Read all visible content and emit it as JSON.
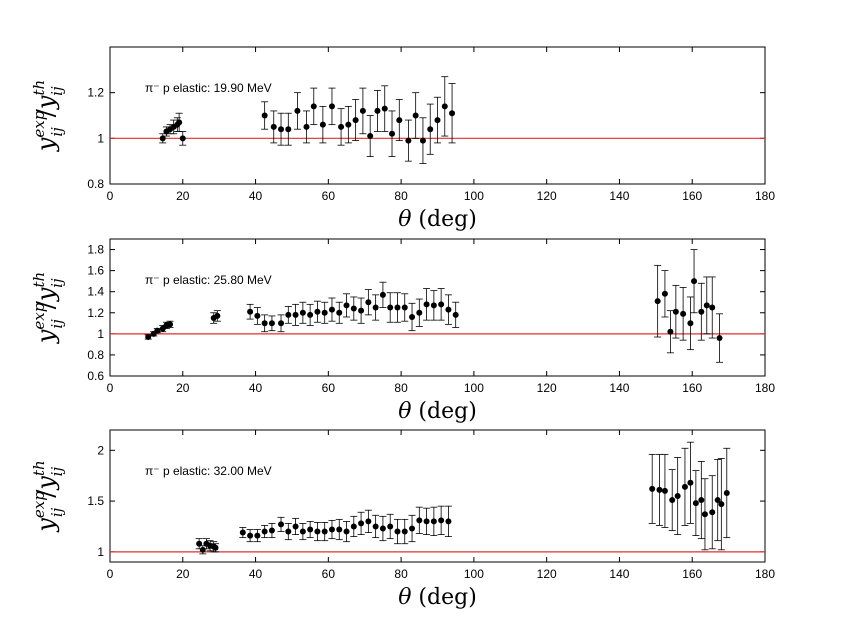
{
  "figure": {
    "xlabel_symbol": "θ",
    "xlabel_unit": "(deg)",
    "ylabel_main": "y",
    "ylabel_sup": "exp",
    "ylabel_sub": "ij",
    "ylabel_slash": "/",
    "ylabel_sup2": "th",
    "ref_line_color": "#e03030"
  },
  "chart_data": [
    {
      "type": "scatter",
      "label": "π⁻ p elastic: 19.90 MeV",
      "xlim": [
        0,
        180
      ],
      "ylim": [
        0.8,
        1.4
      ],
      "xticks": [
        "0",
        "20",
        "40",
        "60",
        "80",
        "100",
        "120",
        "140",
        "160",
        "180"
      ],
      "yticks": [
        {
          "value": 0.8,
          "label": "0.8"
        },
        {
          "value": 1.0,
          "label": "1"
        },
        {
          "value": 1.2,
          "label": "1.2"
        }
      ],
      "reference_y": 1,
      "series": [
        {
          "x": [
            14.5,
            15.5,
            16.5,
            17.5,
            18.5,
            19.0,
            20.0,
            42.5,
            45.0,
            47.0,
            49.0,
            51.5,
            54.0,
            56.0,
            58.5,
            61.0,
            63.5,
            65.5,
            67.5,
            69.5,
            71.5,
            73.5,
            75.5,
            77.5,
            79.5,
            82.0,
            84.0,
            86.0,
            88.0,
            90.0,
            92.0,
            94.0
          ],
          "y": [
            1.0,
            1.03,
            1.04,
            1.05,
            1.06,
            1.07,
            1.0,
            1.1,
            1.05,
            1.04,
            1.04,
            1.12,
            1.05,
            1.14,
            1.06,
            1.14,
            1.05,
            1.06,
            1.08,
            1.12,
            1.01,
            1.12,
            1.13,
            1.02,
            1.08,
            0.99,
            1.1,
            0.99,
            1.04,
            1.08,
            1.14,
            1.11
          ],
          "err": [
            0.02,
            0.02,
            0.02,
            0.03,
            0.03,
            0.04,
            0.03,
            0.06,
            0.07,
            0.07,
            0.07,
            0.08,
            0.07,
            0.08,
            0.08,
            0.08,
            0.08,
            0.08,
            0.09,
            0.1,
            0.09,
            0.09,
            0.1,
            0.1,
            0.09,
            0.09,
            0.1,
            0.1,
            0.11,
            0.1,
            0.13,
            0.13
          ]
        }
      ]
    },
    {
      "type": "scatter",
      "label": "π⁻ p elastic: 25.80 MeV",
      "xlim": [
        0,
        180
      ],
      "ylim": [
        0.6,
        1.9
      ],
      "xticks": [
        "0",
        "20",
        "40",
        "60",
        "80",
        "100",
        "120",
        "140",
        "160",
        "180"
      ],
      "yticks": [
        {
          "value": 0.6,
          "label": "0.6"
        },
        {
          "value": 0.8,
          "label": "0.8"
        },
        {
          "value": 1.0,
          "label": "1"
        },
        {
          "value": 1.2,
          "label": "1.2"
        },
        {
          "value": 1.4,
          "label": "1.4"
        },
        {
          "value": 1.6,
          "label": "1.6"
        },
        {
          "value": 1.8,
          "label": "1.8"
        }
      ],
      "reference_y": 1,
      "series": [
        {
          "x": [
            10.5,
            12.0,
            13.0,
            14.5,
            15.5,
            16.5,
            28.5,
            29.5,
            38.5,
            40.5,
            42.5,
            44.5,
            47.0,
            49.0,
            51.0,
            53.0,
            55.0,
            57.0,
            59.0,
            61.0,
            63.0,
            65.0,
            67.0,
            69.0,
            71.0,
            73.0,
            75.0,
            77.0,
            79.0,
            81.0,
            83.0,
            85.0,
            87.0,
            89.0,
            91.0,
            93.0,
            95.0,
            150.5,
            152.5,
            154.0,
            155.5,
            157.5,
            159.5,
            160.5,
            162.5,
            164.0,
            165.5,
            167.5
          ],
          "y": [
            0.97,
            1.0,
            1.03,
            1.05,
            1.08,
            1.09,
            1.15,
            1.17,
            1.21,
            1.17,
            1.1,
            1.1,
            1.1,
            1.18,
            1.18,
            1.2,
            1.18,
            1.21,
            1.2,
            1.23,
            1.2,
            1.27,
            1.24,
            1.22,
            1.3,
            1.25,
            1.37,
            1.25,
            1.25,
            1.25,
            1.16,
            1.2,
            1.28,
            1.27,
            1.28,
            1.23,
            1.18,
            1.31,
            1.38,
            1.02,
            1.21,
            1.19,
            1.1,
            1.5,
            1.21,
            1.27,
            1.25,
            0.96
          ],
          "err": [
            0.02,
            0.02,
            0.02,
            0.03,
            0.03,
            0.03,
            0.05,
            0.05,
            0.07,
            0.08,
            0.08,
            0.07,
            0.08,
            0.08,
            0.1,
            0.1,
            0.1,
            0.1,
            0.1,
            0.11,
            0.1,
            0.11,
            0.11,
            0.12,
            0.12,
            0.12,
            0.12,
            0.14,
            0.14,
            0.13,
            0.13,
            0.13,
            0.15,
            0.14,
            0.15,
            0.14,
            0.12,
            0.34,
            0.22,
            0.2,
            0.25,
            0.25,
            0.25,
            0.3,
            0.27,
            0.27,
            0.29,
            0.23
          ]
        }
      ]
    },
    {
      "type": "scatter",
      "label": "π⁻ p elastic: 32.00 MeV",
      "xlim": [
        0,
        180
      ],
      "ylim": [
        0.9,
        2.2
      ],
      "xticks": [
        "0",
        "20",
        "40",
        "60",
        "80",
        "100",
        "120",
        "140",
        "160",
        "180"
      ],
      "yticks": [
        {
          "value": 1.0,
          "label": "1"
        },
        {
          "value": 1.5,
          "label": "1.5"
        },
        {
          "value": 2.0,
          "label": "2"
        }
      ],
      "reference_y": 1,
      "series": [
        {
          "x": [
            24.5,
            25.5,
            26.5,
            27.5,
            28.5,
            29.0,
            36.5,
            38.5,
            40.5,
            42.5,
            44.5,
            47.0,
            49.0,
            51.0,
            53.0,
            55.0,
            57.0,
            59.0,
            61.0,
            63.0,
            65.0,
            67.0,
            69.0,
            71.0,
            73.0,
            75.0,
            77.0,
            79.0,
            81.0,
            83.0,
            85.0,
            87.0,
            89.0,
            91.0,
            93.0,
            149.0,
            151.0,
            152.5,
            154.5,
            156.0,
            158.0,
            159.5,
            161.0,
            162.5,
            163.5,
            165.5,
            167.0,
            168.0,
            169.5
          ],
          "y": [
            1.08,
            1.02,
            1.08,
            1.06,
            1.05,
            1.04,
            1.19,
            1.16,
            1.16,
            1.2,
            1.21,
            1.27,
            1.2,
            1.25,
            1.2,
            1.22,
            1.2,
            1.2,
            1.22,
            1.22,
            1.2,
            1.25,
            1.28,
            1.3,
            1.25,
            1.23,
            1.25,
            1.2,
            1.2,
            1.23,
            1.31,
            1.3,
            1.3,
            1.31,
            1.3,
            1.62,
            1.61,
            1.6,
            1.51,
            1.55,
            1.64,
            1.68,
            1.48,
            1.51,
            1.37,
            1.39,
            1.51,
            1.47,
            1.58
          ],
          "err": [
            0.05,
            0.04,
            0.05,
            0.05,
            0.05,
            0.04,
            0.05,
            0.06,
            0.06,
            0.06,
            0.07,
            0.07,
            0.08,
            0.08,
            0.08,
            0.08,
            0.09,
            0.09,
            0.09,
            0.1,
            0.1,
            0.1,
            0.11,
            0.11,
            0.11,
            0.12,
            0.12,
            0.12,
            0.12,
            0.13,
            0.13,
            0.13,
            0.14,
            0.14,
            0.15,
            0.34,
            0.35,
            0.36,
            0.3,
            0.38,
            0.38,
            0.4,
            0.32,
            0.38,
            0.35,
            0.36,
            0.4,
            0.45,
            0.44
          ]
        }
      ]
    }
  ]
}
